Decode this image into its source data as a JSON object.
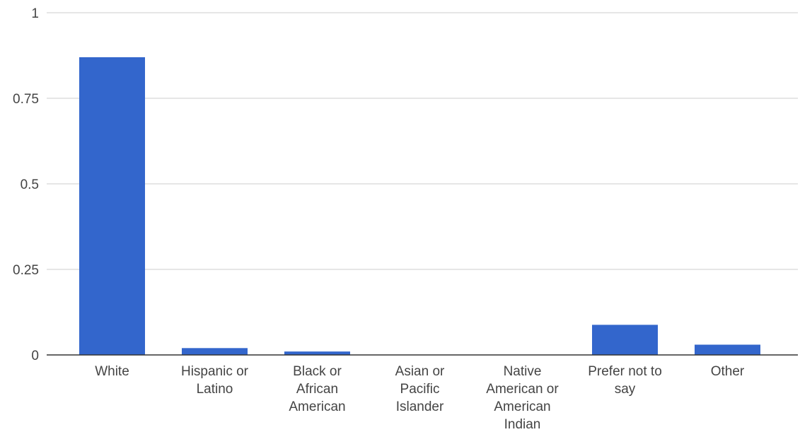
{
  "chart_data": {
    "type": "bar",
    "categories": [
      [
        "White"
      ],
      [
        "Hispanic or",
        "Latino"
      ],
      [
        "Black or",
        "African",
        "American"
      ],
      [
        "Asian or",
        "Pacific",
        "Islander"
      ],
      [
        "Native",
        "American or",
        "American",
        "Indian"
      ],
      [
        "Prefer not to",
        "say"
      ],
      [
        "Other"
      ]
    ],
    "values": [
      0.87,
      0.02,
      0.01,
      0,
      0,
      0.088,
      0.03
    ],
    "ylim": [
      0,
      1
    ],
    "yticks": [
      0,
      0.25,
      0.5,
      0.75,
      1
    ],
    "ytick_labels": [
      "0",
      "0.25",
      "0.5",
      "0.75",
      "1"
    ],
    "grid": true,
    "bar_color": "#3366cc",
    "title": "",
    "xlabel": "",
    "ylabel": ""
  }
}
